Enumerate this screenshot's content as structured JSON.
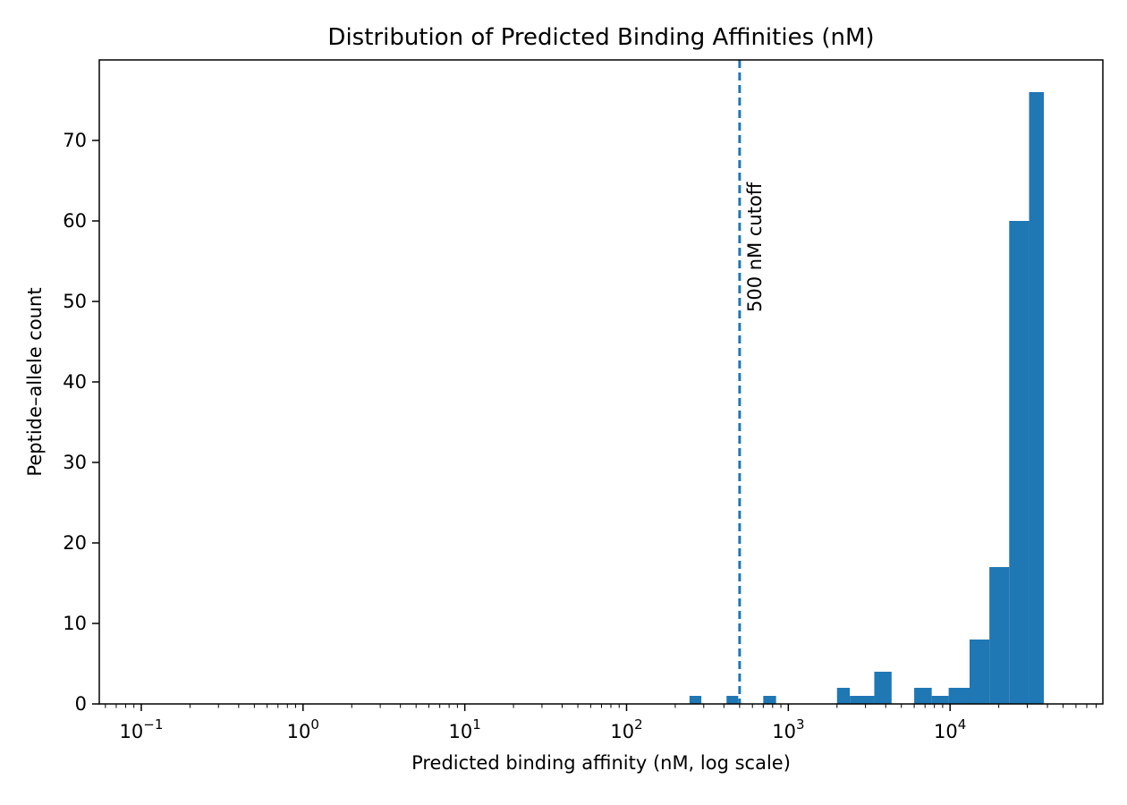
{
  "chart_data": {
    "type": "bar",
    "subtype": "histogram",
    "title": "Distribution of Predicted Binding Affinities (nM)",
    "xlabel": "Predicted binding affinity (nM, log scale)",
    "ylabel": "Peptide–allele count",
    "xscale": "log",
    "xlim": [
      0.055,
      88000
    ],
    "ylim": [
      0,
      80
    ],
    "grid": false,
    "legend": null,
    "bar_color": "#1f77b4",
    "x_ticks": [
      {
        "value": 0.1,
        "base": "10",
        "exp": "−1"
      },
      {
        "value": 1,
        "base": "10",
        "exp": "0"
      },
      {
        "value": 10,
        "base": "10",
        "exp": "1"
      },
      {
        "value": 100,
        "base": "10",
        "exp": "2"
      },
      {
        "value": 1000,
        "base": "10",
        "exp": "3"
      },
      {
        "value": 10000,
        "base": "10",
        "exp": "4"
      }
    ],
    "y_ticks": [
      0,
      10,
      20,
      30,
      40,
      50,
      60,
      70
    ],
    "bins": [
      {
        "x0": 245,
        "x1": 290,
        "count": 1
      },
      {
        "x0": 415,
        "x1": 490,
        "count": 1
      },
      {
        "x0": 700,
        "x1": 840,
        "count": 1
      },
      {
        "x0": 2000,
        "x1": 2400,
        "count": 2
      },
      {
        "x0": 2400,
        "x1": 3400,
        "count": 1
      },
      {
        "x0": 3400,
        "x1": 4350,
        "count": 4
      },
      {
        "x0": 6000,
        "x1": 7700,
        "count": 2
      },
      {
        "x0": 7700,
        "x1": 9800,
        "count": 1
      },
      {
        "x0": 9800,
        "x1": 13200,
        "count": 2
      },
      {
        "x0": 13200,
        "x1": 17500,
        "count": 8
      },
      {
        "x0": 17500,
        "x1": 23200,
        "count": 17
      },
      {
        "x0": 23200,
        "x1": 30800,
        "count": 60
      },
      {
        "x0": 30800,
        "x1": 38000,
        "count": 76
      }
    ],
    "reference_line": {
      "x": 500,
      "style": "dashed",
      "color": "#1f77b4",
      "label": "500 nM cutoff",
      "label_y": 50
    }
  }
}
